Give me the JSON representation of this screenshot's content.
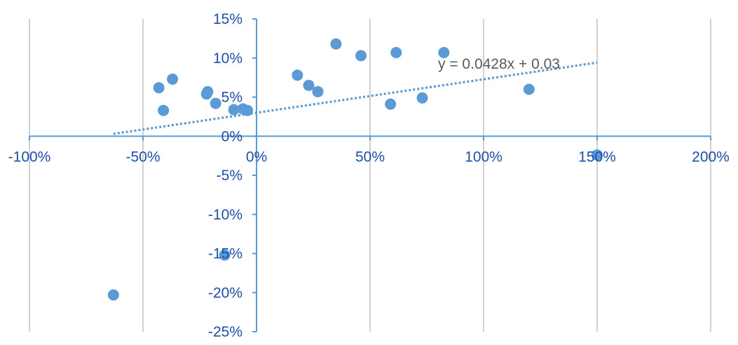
{
  "chart_data": {
    "type": "scatter",
    "title": "",
    "xlabel": "",
    "ylabel": "",
    "xlim": [
      -1.0,
      2.0
    ],
    "ylim": [
      -0.25,
      0.15
    ],
    "x_ticks": [
      -1.0,
      -0.5,
      0.0,
      0.5,
      1.0,
      1.5,
      2.0
    ],
    "x_tick_labels": [
      "-100%",
      "-50%",
      "0%",
      "50%",
      "100%",
      "150%",
      "200%"
    ],
    "y_ticks": [
      0.15,
      0.1,
      0.05,
      0.0,
      -0.05,
      -0.1,
      -0.15,
      -0.2,
      -0.25
    ],
    "y_tick_labels": [
      "15%",
      "10%",
      "5%",
      "0%",
      "-5%",
      "-10%",
      "-15%",
      "-20%",
      "-25%"
    ],
    "grid": "vertical",
    "legend": "none",
    "colors": {
      "points": "#5b9bd5",
      "axis": "#5b9bd5",
      "grid": "#d0d0d0",
      "tick_text": "#1f4fa8",
      "trend_text": "#595959"
    },
    "series": [
      {
        "points": [
          {
            "x": -0.63,
            "y": -0.203
          },
          {
            "x": -0.43,
            "y": 0.062
          },
          {
            "x": -0.41,
            "y": 0.033
          },
          {
            "x": -0.37,
            "y": 0.073
          },
          {
            "x": -0.215,
            "y": 0.057
          },
          {
            "x": -0.22,
            "y": 0.054
          },
          {
            "x": -0.18,
            "y": 0.042
          },
          {
            "x": -0.14,
            "y": -0.152
          },
          {
            "x": -0.1,
            "y": 0.034
          },
          {
            "x": -0.06,
            "y": 0.035
          },
          {
            "x": -0.04,
            "y": 0.033
          },
          {
            "x": 0.18,
            "y": 0.078
          },
          {
            "x": 0.23,
            "y": 0.065
          },
          {
            "x": 0.27,
            "y": 0.057
          },
          {
            "x": 0.35,
            "y": 0.118
          },
          {
            "x": 0.46,
            "y": 0.103
          },
          {
            "x": 0.59,
            "y": 0.041
          },
          {
            "x": 0.615,
            "y": 0.107
          },
          {
            "x": 0.73,
            "y": 0.049
          },
          {
            "x": 0.825,
            "y": 0.107
          },
          {
            "x": 1.2,
            "y": 0.06
          },
          {
            "x": 1.5,
            "y": -0.024
          }
        ]
      }
    ],
    "trendline": {
      "slope": 0.0428,
      "intercept": 0.03,
      "x_start": -0.63,
      "x_end": 1.5,
      "label": "y = 0.0428x  + 0.03"
    }
  }
}
